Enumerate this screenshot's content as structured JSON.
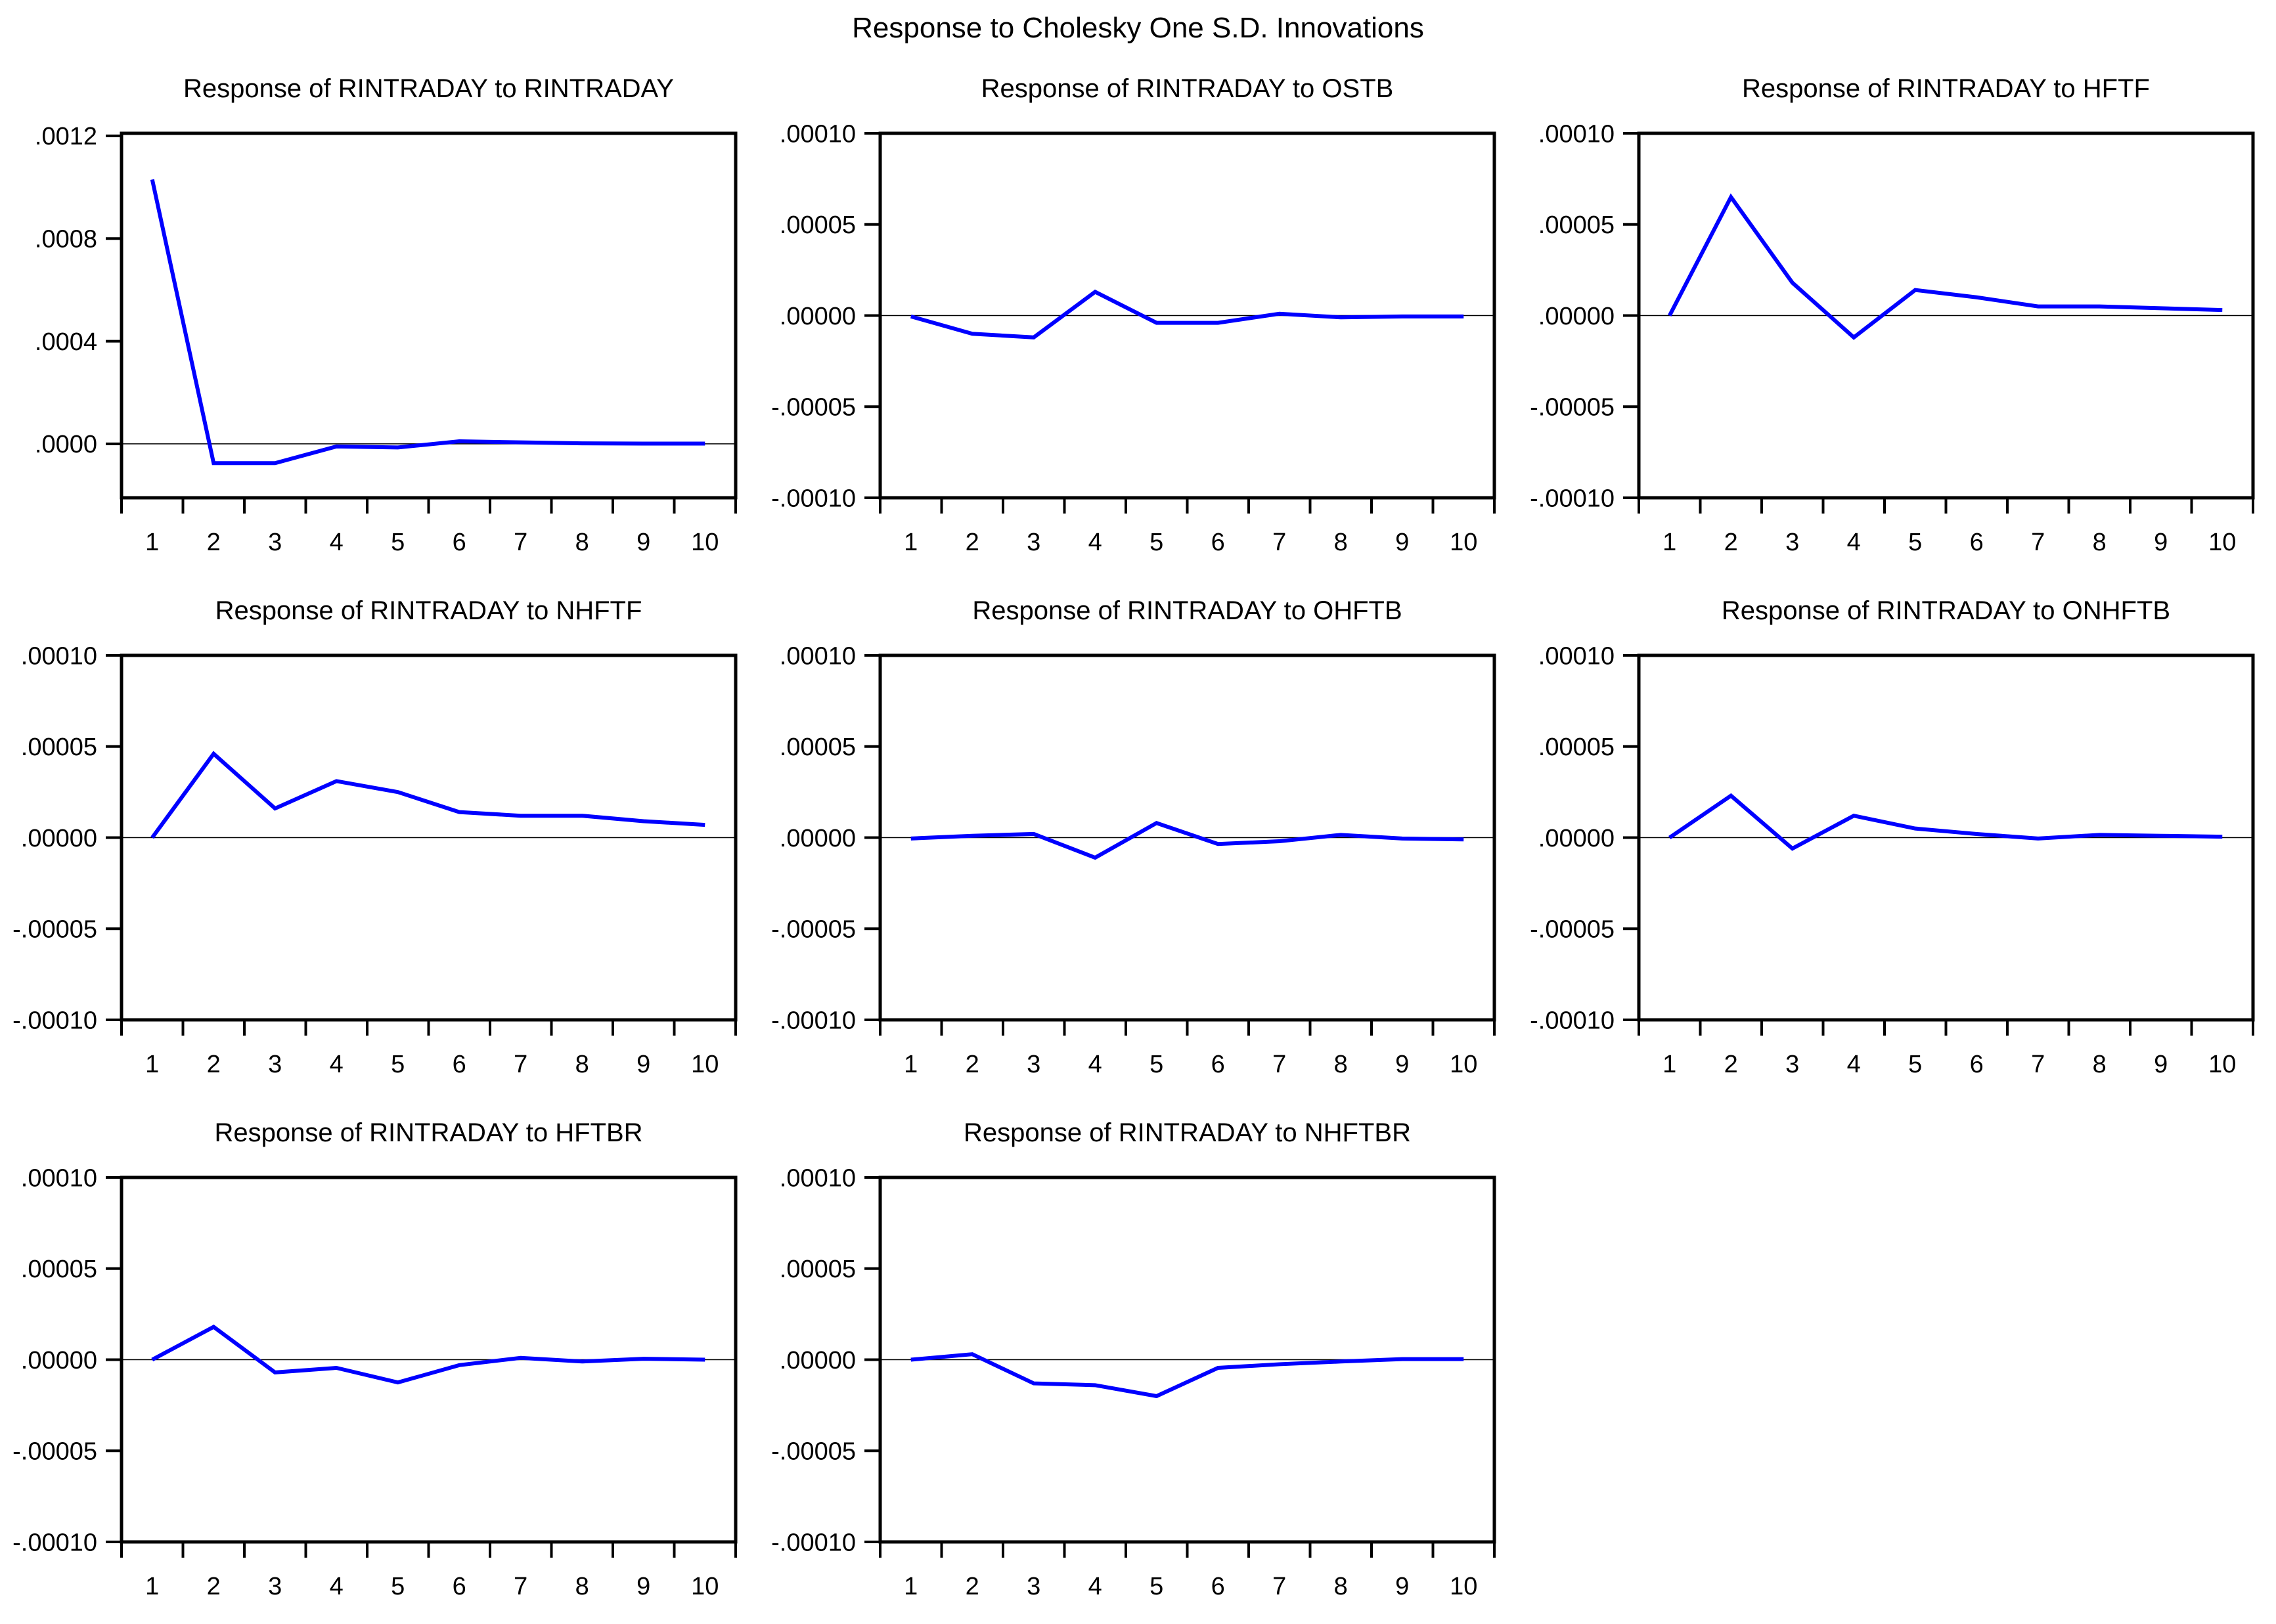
{
  "figure_title": "Response to Cholesky One S.D. Innovations",
  "line_color": "#0000ff",
  "axis_color": "#000000",
  "background_color": "#ffffff",
  "chart_data": [
    {
      "type": "line",
      "title": "Response of RINTRADAY to RINTRADAY",
      "x": [
        1,
        2,
        3,
        4,
        5,
        6,
        7,
        8,
        9,
        10
      ],
      "values": [
        0.00103,
        -7.5e-05,
        -7.5e-05,
        -1e-05,
        -1.4e-05,
        1e-05,
        6e-06,
        2e-06,
        1e-06,
        1e-06
      ],
      "ylim": [
        -0.00021,
        0.00121
      ],
      "yticks": [
        {
          "value": 0.0012,
          "label": ".0012"
        },
        {
          "value": 0.0008,
          "label": ".0008"
        },
        {
          "value": 0.0004,
          "label": ".0004"
        },
        {
          "value": 0.0,
          "label": ".0000"
        }
      ],
      "xlabel": "",
      "ylabel": "",
      "grid": false,
      "legend": "none",
      "zero_line": true
    },
    {
      "type": "line",
      "title": "Response of RINTRADAY to OSTB",
      "x": [
        1,
        2,
        3,
        4,
        5,
        6,
        7,
        8,
        9,
        10
      ],
      "values": [
        -5e-07,
        -1e-05,
        -1.2e-05,
        1.3e-05,
        -4e-06,
        -4e-06,
        1e-06,
        -1e-06,
        -5e-07,
        -5e-07
      ],
      "ylim": [
        -0.0001,
        0.0001
      ],
      "yticks": [
        {
          "value": 0.0001,
          "label": ".00010"
        },
        {
          "value": 5e-05,
          "label": ".00005"
        },
        {
          "value": 0.0,
          "label": ".00000"
        },
        {
          "value": -5e-05,
          "label": "-.00005"
        },
        {
          "value": -0.0001,
          "label": "-.00010"
        }
      ],
      "xlabel": "",
      "ylabel": "",
      "grid": false,
      "legend": "none",
      "zero_line": true
    },
    {
      "type": "line",
      "title": "Response of RINTRADAY to HFTF",
      "x": [
        1,
        2,
        3,
        4,
        5,
        6,
        7,
        8,
        9,
        10
      ],
      "values": [
        0.0,
        6.5e-05,
        1.8e-05,
        -1.2e-05,
        1.4e-05,
        1e-05,
        5e-06,
        5e-06,
        4e-06,
        3e-06
      ],
      "ylim": [
        -0.0001,
        0.0001
      ],
      "yticks": [
        {
          "value": 0.0001,
          "label": ".00010"
        },
        {
          "value": 5e-05,
          "label": ".00005"
        },
        {
          "value": 0.0,
          "label": ".00000"
        },
        {
          "value": -5e-05,
          "label": "-.00005"
        },
        {
          "value": -0.0001,
          "label": "-.00010"
        }
      ],
      "xlabel": "",
      "ylabel": "",
      "grid": false,
      "legend": "none",
      "zero_line": true
    },
    {
      "type": "line",
      "title": "Response of RINTRADAY to NHFTF",
      "x": [
        1,
        2,
        3,
        4,
        5,
        6,
        7,
        8,
        9,
        10
      ],
      "values": [
        0.0,
        4.6e-05,
        1.6e-05,
        3.1e-05,
        2.5e-05,
        1.4e-05,
        1.2e-05,
        1.2e-05,
        9e-06,
        7e-06
      ],
      "ylim": [
        -0.0001,
        0.0001
      ],
      "yticks": [
        {
          "value": 0.0001,
          "label": ".00010"
        },
        {
          "value": 5e-05,
          "label": ".00005"
        },
        {
          "value": 0.0,
          "label": ".00000"
        },
        {
          "value": -5e-05,
          "label": "-.00005"
        },
        {
          "value": -0.0001,
          "label": "-.00010"
        }
      ],
      "xlabel": "",
      "ylabel": "",
      "grid": false,
      "legend": "none",
      "zero_line": true
    },
    {
      "type": "line",
      "title": "Response of RINTRADAY to OHFTB",
      "x": [
        1,
        2,
        3,
        4,
        5,
        6,
        7,
        8,
        9,
        10
      ],
      "values": [
        -5e-07,
        1e-06,
        2e-06,
        -1.1e-05,
        8e-06,
        -3.5e-06,
        -2e-06,
        1.5e-06,
        -5e-07,
        -1e-06
      ],
      "ylim": [
        -0.0001,
        0.0001
      ],
      "yticks": [
        {
          "value": 0.0001,
          "label": ".00010"
        },
        {
          "value": 5e-05,
          "label": ".00005"
        },
        {
          "value": 0.0,
          "label": ".00000"
        },
        {
          "value": -5e-05,
          "label": "-.00005"
        },
        {
          "value": -0.0001,
          "label": "-.00010"
        }
      ],
      "xlabel": "",
      "ylabel": "",
      "grid": false,
      "legend": "none",
      "zero_line": true
    },
    {
      "type": "line",
      "title": "Response of RINTRADAY to ONHFTB",
      "x": [
        1,
        2,
        3,
        4,
        5,
        6,
        7,
        8,
        9,
        10
      ],
      "values": [
        0.0,
        2.3e-05,
        -6e-06,
        1.2e-05,
        5e-06,
        2e-06,
        -5e-07,
        1.5e-06,
        1e-06,
        5e-07
      ],
      "ylim": [
        -0.0001,
        0.0001
      ],
      "yticks": [
        {
          "value": 0.0001,
          "label": ".00010"
        },
        {
          "value": 5e-05,
          "label": ".00005"
        },
        {
          "value": 0.0,
          "label": ".00000"
        },
        {
          "value": -5e-05,
          "label": "-.00005"
        },
        {
          "value": -0.0001,
          "label": "-.00010"
        }
      ],
      "xlabel": "",
      "ylabel": "",
      "grid": false,
      "legend": "none",
      "zero_line": true
    },
    {
      "type": "line",
      "title": "Response of RINTRADAY to HFTBR",
      "x": [
        1,
        2,
        3,
        4,
        5,
        6,
        7,
        8,
        9,
        10
      ],
      "values": [
        0.0,
        1.8e-05,
        -7e-06,
        -4.5e-06,
        -1.25e-05,
        -3e-06,
        1e-06,
        -1e-06,
        5e-07,
        0.0
      ],
      "ylim": [
        -0.0001,
        0.0001
      ],
      "yticks": [
        {
          "value": 0.0001,
          "label": ".00010"
        },
        {
          "value": 5e-05,
          "label": ".00005"
        },
        {
          "value": 0.0,
          "label": ".00000"
        },
        {
          "value": -5e-05,
          "label": "-.00005"
        },
        {
          "value": -0.0001,
          "label": "-.00010"
        }
      ],
      "xlabel": "",
      "ylabel": "",
      "grid": false,
      "legend": "none",
      "zero_line": true
    },
    {
      "type": "line",
      "title": "Response of RINTRADAY to NHFTBR",
      "x": [
        1,
        2,
        3,
        4,
        5,
        6,
        7,
        8,
        9,
        10
      ],
      "values": [
        0.0,
        3e-06,
        -1.3e-05,
        -1.4e-05,
        -2e-05,
        -4.5e-06,
        -2.5e-06,
        -1e-06,
        3e-07,
        3e-07
      ],
      "ylim": [
        -0.0001,
        0.0001
      ],
      "yticks": [
        {
          "value": 0.0001,
          "label": ".00010"
        },
        {
          "value": 5e-05,
          "label": ".00005"
        },
        {
          "value": 0.0,
          "label": ".00000"
        },
        {
          "value": -5e-05,
          "label": "-.00005"
        },
        {
          "value": -0.0001,
          "label": "-.00010"
        }
      ],
      "xlabel": "",
      "ylabel": "",
      "grid": false,
      "legend": "none",
      "zero_line": true
    }
  ]
}
